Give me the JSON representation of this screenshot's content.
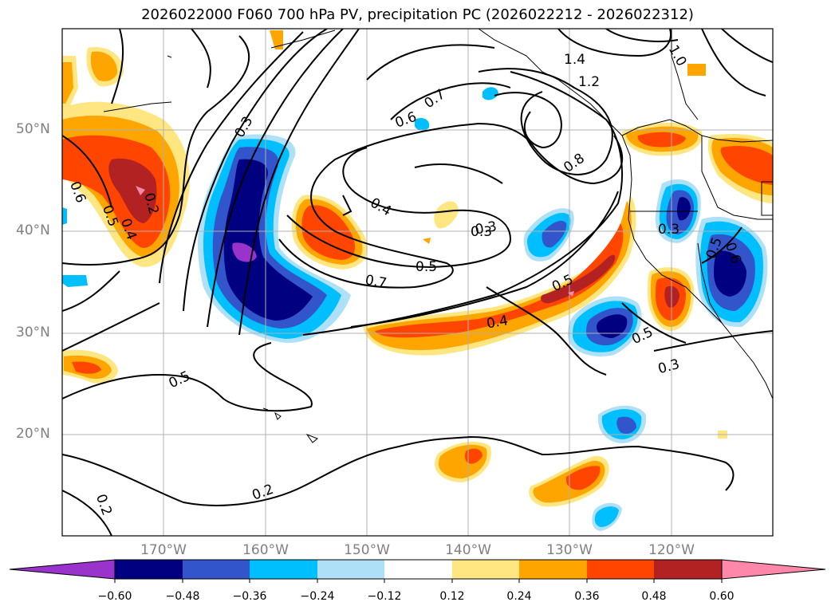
{
  "title": "2026022000 F060 700 hPa PV, precipitation PC (2026022212 - 2026022312)",
  "lat_labels": [
    "50°N",
    "40°N",
    "30°N",
    "20°N"
  ],
  "lon_labels": [
    "170°W",
    "160°W",
    "150°W",
    "140°W",
    "130°W",
    "120°W"
  ],
  "contour_labels": [
    "1.4",
    "1.2",
    "1.0",
    "0.7",
    "0.6",
    "0.3",
    "0.8",
    "0.6",
    "0.5",
    "0.2",
    "0.4",
    "0.4",
    "0.3",
    "0.5",
    "0.7",
    "0.5",
    "0.4",
    "0.3",
    "0.5",
    "0.5",
    "0.6",
    "0.3",
    "0.5",
    "0.3",
    "0.2",
    "0.2"
  ],
  "colorbar": {
    "ticks": [
      "−0.60",
      "−0.48",
      "−0.36",
      "−0.24",
      "−0.12",
      "0.12",
      "0.24",
      "0.36",
      "0.48",
      "0.60"
    ],
    "colors": [
      "#9933cc",
      "#000080",
      "#3355cc",
      "#00bfff",
      "#aee0f8",
      "#ffffff",
      "#ffe680",
      "#ffa500",
      "#ff4500",
      "#b22222",
      "#ff88aa"
    ]
  }
}
